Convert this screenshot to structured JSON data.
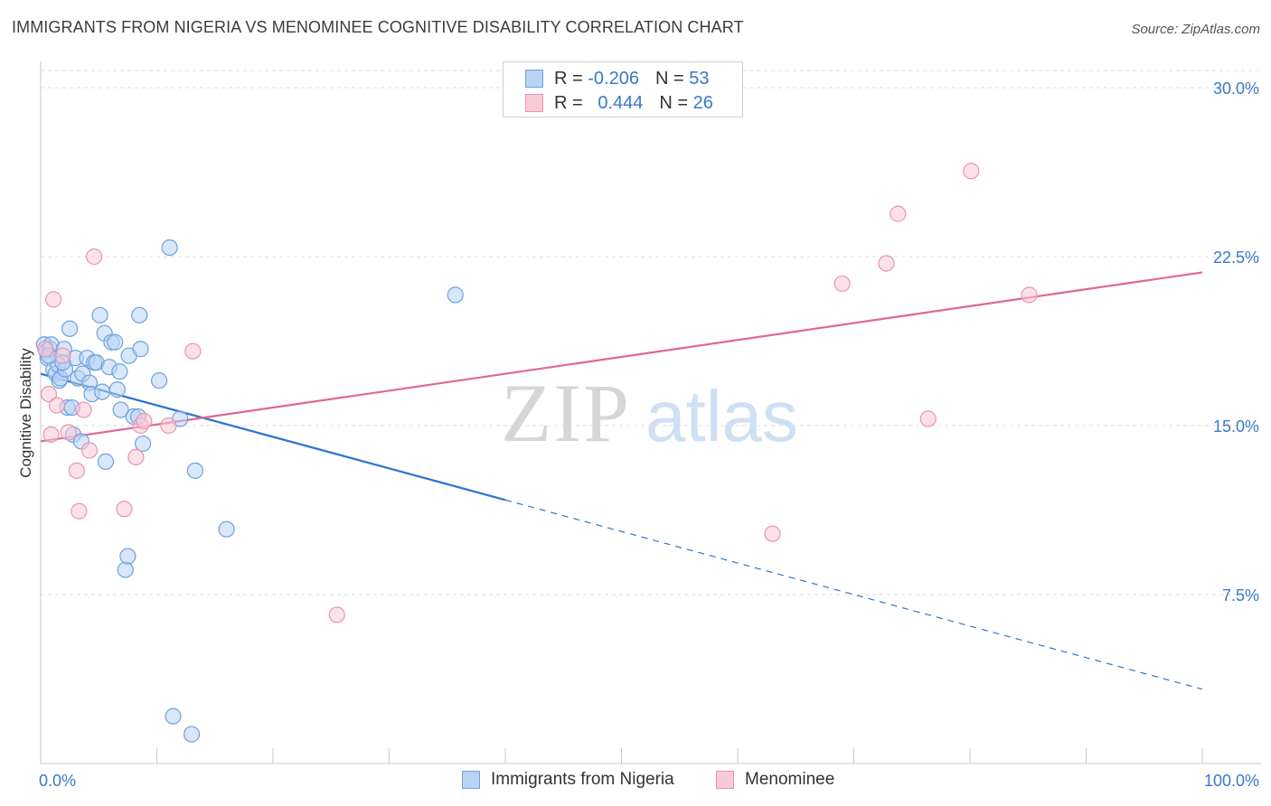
{
  "title": "IMMIGRANTS FROM NIGERIA VS MENOMINEE COGNITIVE DISABILITY CORRELATION CHART",
  "source": "Source: ZipAtlas.com",
  "watermark": {
    "zip": "ZIP",
    "atlas": "atlas"
  },
  "legend": {
    "r_label": "R =",
    "n_label": "N =",
    "rows": [
      {
        "r": "-0.206",
        "n": "53",
        "fill": "#b8d3f4",
        "stroke": "#6fa1de"
      },
      {
        "r": "0.444",
        "n": "26",
        "fill": "#f9c9d7",
        "stroke": "#e895ad"
      }
    ]
  },
  "chart_data": {
    "type": "scatter",
    "title": "IMMIGRANTS FROM NIGERIA VS MENOMINEE COGNITIVE DISABILITY CORRELATION CHART",
    "xlabel": "",
    "ylabel": "Cognitive Disability",
    "xlim": [
      0,
      100
    ],
    "ylim": [
      0,
      30
    ],
    "x_tick_labels": [
      "0.0%",
      "100.0%"
    ],
    "y_ticks": [
      7.5,
      15.0,
      22.5,
      30.0
    ],
    "y_tick_labels": [
      "7.5%",
      "15.0%",
      "22.5%",
      "30.0%"
    ],
    "grid": true,
    "series": [
      {
        "name": "Immigrants from Nigeria",
        "color": "#6fa1de",
        "fill": "#b8d3f4",
        "line_color": "#2f75cf",
        "trend": {
          "x0": 0,
          "y0": 17.3,
          "x1": 100,
          "y1": 3.3,
          "solid_until": 40
        },
        "points": [
          [
            0.3,
            18.6
          ],
          [
            0.5,
            18.3
          ],
          [
            0.6,
            18.0
          ],
          [
            0.8,
            18.4
          ],
          [
            0.9,
            18.6
          ],
          [
            1.1,
            17.5
          ],
          [
            1.3,
            17.3
          ],
          [
            1.5,
            17.7
          ],
          [
            1.6,
            17.0
          ],
          [
            1.7,
            17.1
          ],
          [
            2.0,
            18.4
          ],
          [
            2.1,
            17.5
          ],
          [
            2.3,
            15.8
          ],
          [
            2.5,
            19.3
          ],
          [
            2.7,
            15.8
          ],
          [
            2.8,
            14.6
          ],
          [
            3.0,
            18.0
          ],
          [
            3.2,
            17.1
          ],
          [
            3.5,
            14.3
          ],
          [
            3.6,
            17.3
          ],
          [
            4.0,
            18.0
          ],
          [
            4.2,
            16.9
          ],
          [
            4.4,
            16.4
          ],
          [
            4.6,
            17.8
          ],
          [
            4.8,
            17.8
          ],
          [
            5.1,
            19.9
          ],
          [
            5.3,
            16.5
          ],
          [
            5.5,
            19.1
          ],
          [
            5.6,
            13.4
          ],
          [
            5.9,
            17.6
          ],
          [
            6.1,
            18.7
          ],
          [
            6.4,
            18.7
          ],
          [
            6.6,
            16.6
          ],
          [
            6.8,
            17.4
          ],
          [
            6.9,
            15.7
          ],
          [
            7.3,
            8.6
          ],
          [
            7.5,
            9.2
          ],
          [
            7.6,
            18.1
          ],
          [
            8.0,
            15.4
          ],
          [
            8.4,
            15.4
          ],
          [
            8.5,
            19.9
          ],
          [
            8.6,
            18.4
          ],
          [
            8.8,
            14.2
          ],
          [
            10.2,
            17.0
          ],
          [
            11.1,
            22.9
          ],
          [
            12.0,
            15.3
          ],
          [
            13.3,
            13.0
          ],
          [
            16.0,
            10.4
          ],
          [
            11.4,
            2.1
          ],
          [
            13.0,
            1.3
          ],
          [
            35.7,
            20.8
          ],
          [
            0.7,
            18.1
          ],
          [
            1.9,
            17.8
          ]
        ]
      },
      {
        "name": "Menominee",
        "color": "#e895ad",
        "fill": "#f9c9d7",
        "line_color": "#e06890",
        "trend": {
          "x0": 0,
          "y0": 14.3,
          "x1": 100,
          "y1": 21.8
        },
        "points": [
          [
            0.4,
            18.4
          ],
          [
            0.7,
            16.4
          ],
          [
            1.1,
            20.6
          ],
          [
            1.4,
            15.9
          ],
          [
            1.9,
            18.1
          ],
          [
            2.4,
            14.7
          ],
          [
            3.1,
            13.0
          ],
          [
            3.3,
            11.2
          ],
          [
            3.7,
            15.7
          ],
          [
            4.2,
            13.9
          ],
          [
            4.6,
            22.5
          ],
          [
            7.2,
            11.3
          ],
          [
            8.2,
            13.6
          ],
          [
            8.6,
            15.0
          ],
          [
            8.9,
            15.2
          ],
          [
            11.0,
            15.0
          ],
          [
            13.1,
            18.3
          ],
          [
            25.5,
            6.6
          ],
          [
            63.0,
            10.2
          ],
          [
            69.0,
            21.3
          ],
          [
            72.8,
            22.2
          ],
          [
            73.8,
            24.4
          ],
          [
            76.4,
            15.3
          ],
          [
            80.1,
            26.3
          ],
          [
            85.1,
            20.8
          ],
          [
            0.9,
            14.6
          ]
        ]
      }
    ],
    "legend_position": "bottom-center"
  }
}
